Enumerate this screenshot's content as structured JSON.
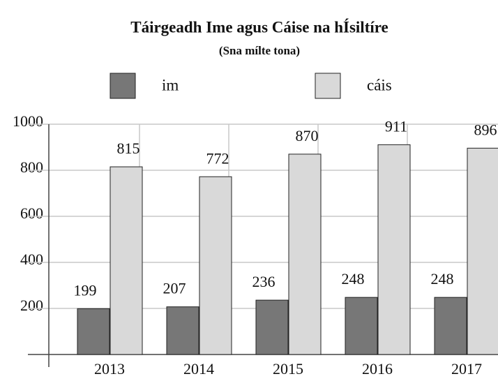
{
  "chart_data": {
    "type": "bar",
    "title": "Táirgeadh Ime agus Cáise na hÍsiltíre",
    "subtitle": "(Sna mílte tona)",
    "categories": [
      "2013",
      "2014",
      "2015",
      "2016",
      "2017"
    ],
    "series": [
      {
        "name": "im",
        "color": "#777777",
        "values": [
          199,
          207,
          236,
          248,
          248
        ]
      },
      {
        "name": "cáis",
        "color": "#d9d9d9",
        "values": [
          815,
          772,
          870,
          911,
          896
        ]
      }
    ],
    "ylim": [
      0,
      1000
    ],
    "yticks": [
      200,
      400,
      600,
      800,
      1000
    ],
    "grid": true
  }
}
